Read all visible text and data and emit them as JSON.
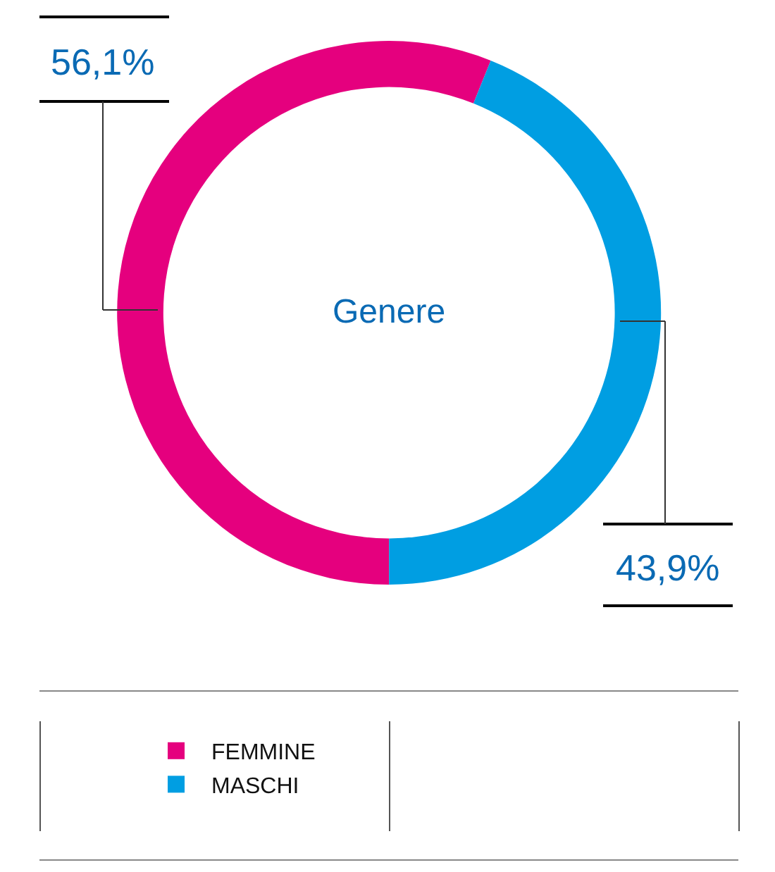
{
  "chart_data": {
    "type": "donut",
    "title": "Genere",
    "categories": [
      "FEMMINE",
      "MASCHI"
    ],
    "values": [
      56.1,
      43.9
    ],
    "colors": [
      "#e5007e",
      "#009ee2"
    ],
    "value_labels": [
      "56,1%",
      "43,9%"
    ],
    "legend": "bottom"
  }
}
